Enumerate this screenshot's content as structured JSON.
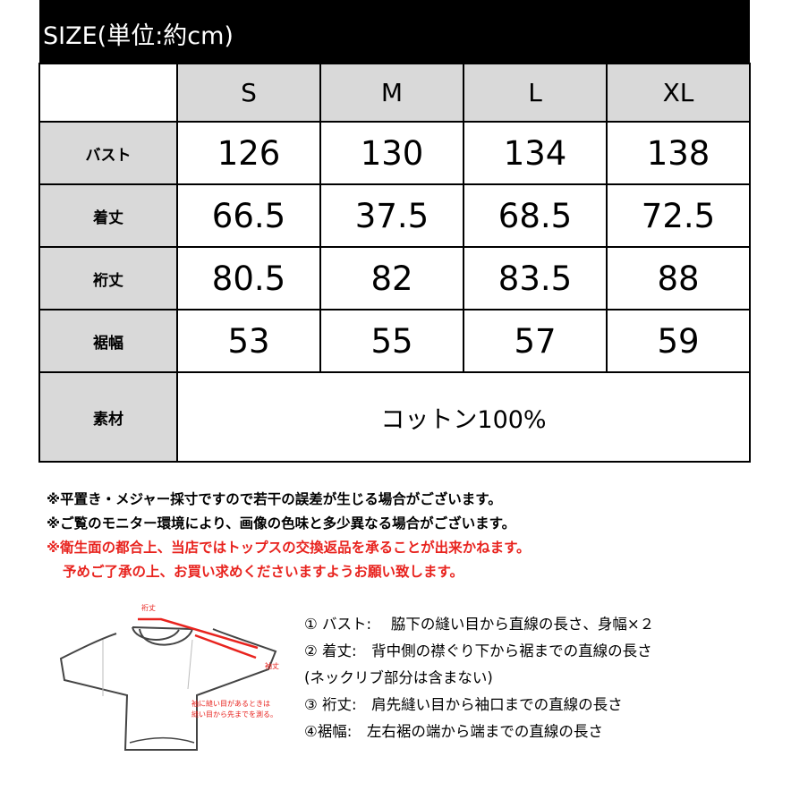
{
  "title": "SIZE(単位:約cm)",
  "sizes": [
    "S",
    "M",
    "L",
    "XL"
  ],
  "rows": [
    {
      "label": "バスト",
      "values": [
        "126",
        "130",
        "134",
        "138"
      ]
    },
    {
      "label": "着丈",
      "values": [
        "66.5",
        "37.5",
        "68.5",
        "72.5"
      ]
    },
    {
      "label": "裄丈",
      "values": [
        "80.5",
        "82",
        "83.5",
        "88"
      ]
    },
    {
      "label": "裾幅",
      "values": [
        "53",
        "55",
        "57",
        "59"
      ]
    }
  ],
  "material": {
    "label": "素材",
    "value": "コットン100%"
  },
  "notes": [
    "※平置き・メジャー採寸ですので若干の誤差が生じる場合がございます。",
    "※ご覧のモニター環境により、画像の色味と多少異なる場合がございます。",
    "※衛生面の都合上、当店ではトップスの交換返品を承ることが出来かねます。",
    "予めご了承の上、お買い求めくださいますようお願い致します。"
  ],
  "diagram": {
    "label_top": "裄丈",
    "label_right": "袖丈",
    "note1": "袖に縫い目があるときは",
    "note2": "縫い目から先までを測る。",
    "line_color": "#e8231e"
  },
  "measurements": [
    "① バスト:　 脇下の縫い目から直線の長さ、身幅×２",
    "② 着丈:　背中側の襟ぐり下から裾までの直線の長さ",
    "(ネックリブ部分は含まない)",
    "③ 裄丈:　肩先縫い目から袖口までの直線の長さ",
    "④裾幅:　左右裾の端から端までの直線の長さ"
  ]
}
